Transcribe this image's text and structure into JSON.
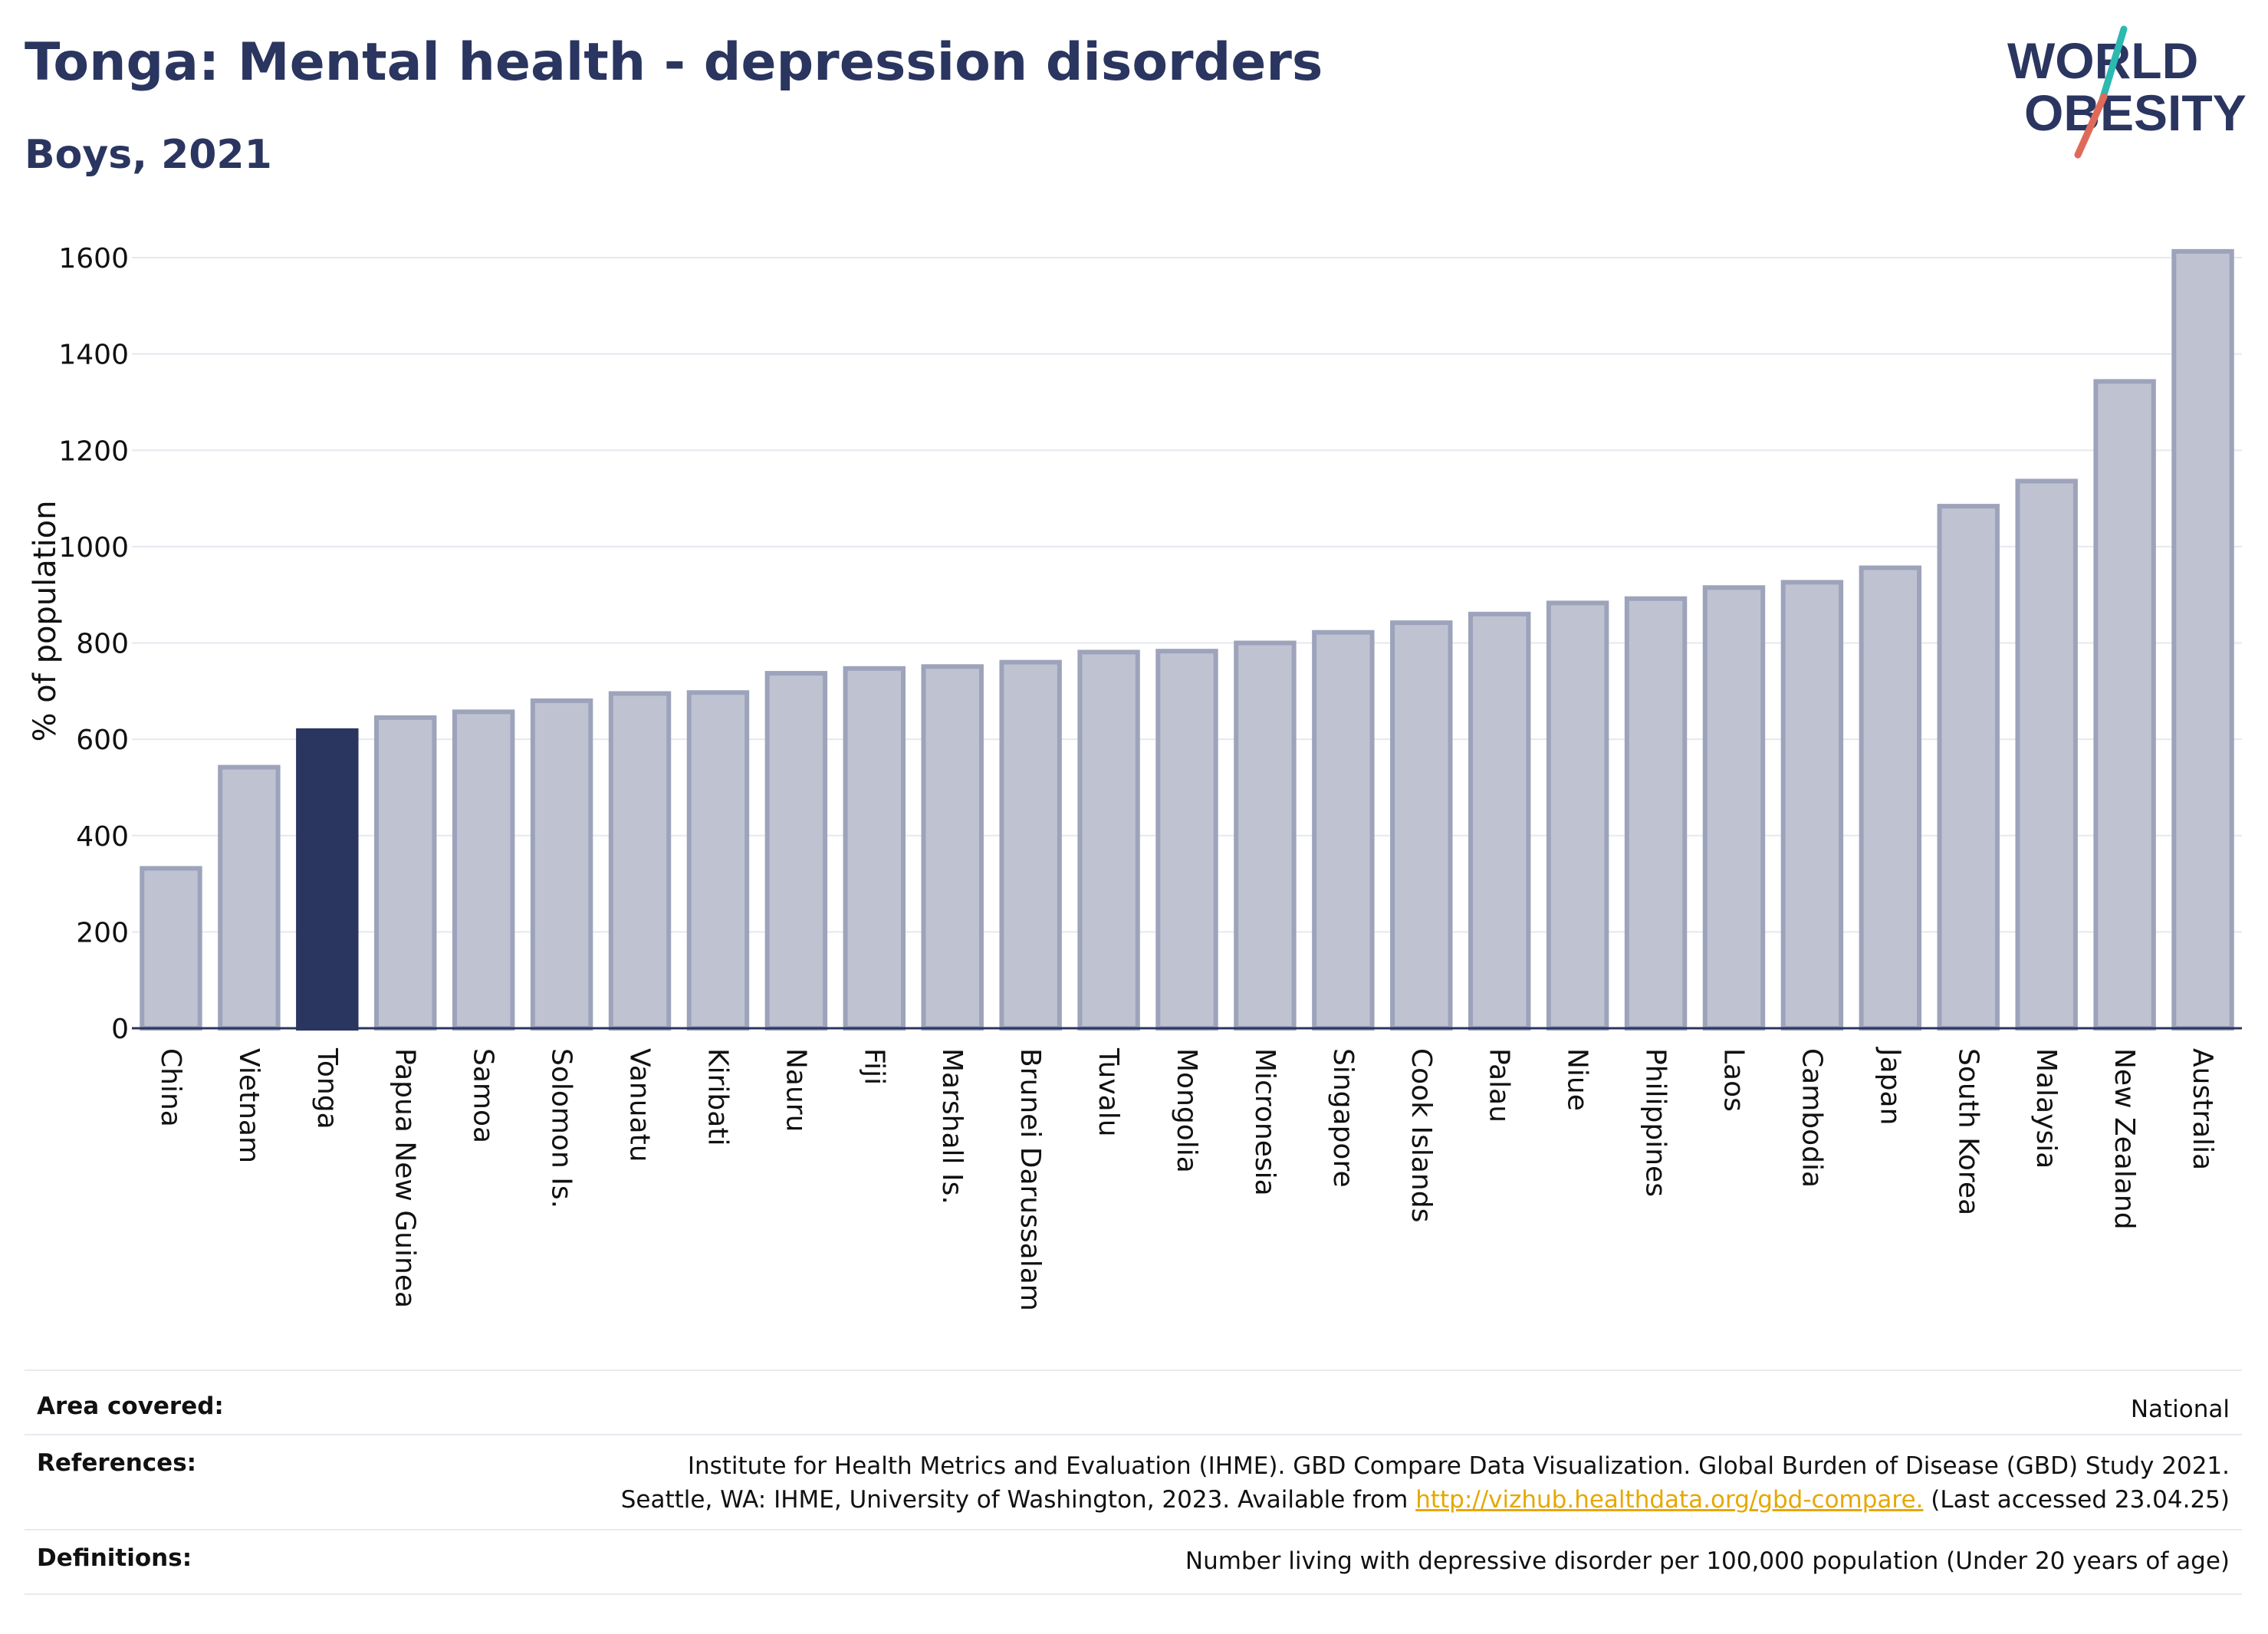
{
  "header": {
    "title": "Tonga: Mental health - depression disorders",
    "subtitle": "Boys, 2021"
  },
  "logo": {
    "line1": "WORLD",
    "line2": "OBESITY",
    "colors": {
      "text": "#2a3560",
      "accent_teal": "#2bb9b1",
      "accent_red": "#e06a5a"
    }
  },
  "chart_data": {
    "type": "bar",
    "ylabel": "% of population",
    "ylim": [
      0,
      1650
    ],
    "yticks": [
      0,
      200,
      400,
      600,
      800,
      1000,
      1200,
      1400,
      1600
    ],
    "grid": true,
    "highlight": "Tonga",
    "colors": {
      "bar": "#bfc3d1",
      "bar_border": "#9da3ba",
      "highlight": "#2a3560",
      "axis": "#2a3560",
      "grid": "#e6e8ef"
    },
    "categories": [
      "China",
      "Vietnam",
      "Tonga",
      "Papua New Guinea",
      "Samoa",
      "Solomon Is.",
      "Vanuatu",
      "Kiribati",
      "Nauru",
      "Fiji",
      "Marshall Is.",
      "Brunei Darussalam",
      "Tuvalu",
      "Mongolia",
      "Micronesia",
      "Singapore",
      "Cook Islands",
      "Palau",
      "Niue",
      "Philippines",
      "Laos",
      "Cambodia",
      "Japan",
      "South Korea",
      "Malaysia",
      "New Zealand",
      "Australia"
    ],
    "values": [
      332,
      542,
      618,
      645,
      657,
      680,
      695,
      697,
      737,
      747,
      751,
      760,
      781,
      783,
      800,
      822,
      842,
      860,
      883,
      892,
      915,
      926,
      956,
      1084,
      1136,
      1343,
      1613
    ]
  },
  "info": {
    "area_label": "Area covered:",
    "area_value": "National",
    "references_label": "References:",
    "references_line1": "Institute for Health Metrics and Evaluation (IHME). GBD Compare Data Visualization. Global Burden of Disease (GBD) Study 2021.",
    "references_line2_prefix": "Seattle, WA: IHME, University of Washington, 2023. Available from ",
    "references_link": "http://vizhub.healthdata.org/gbd-compare.",
    "references_line2_suffix": " (Last accessed 23.04.25)",
    "definitions_label": "Definitions:",
    "definitions_value": "Number living with depressive disorder per 100,000 population (Under 20 years of age)"
  }
}
